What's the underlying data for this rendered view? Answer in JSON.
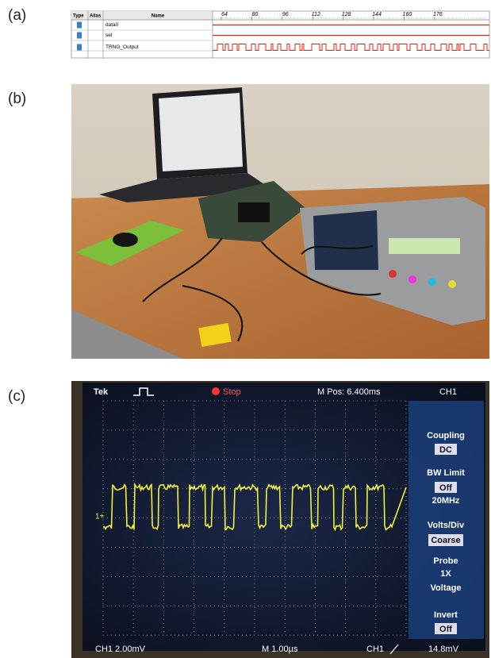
{
  "panels": {
    "a": {
      "label": "(a)",
      "table": {
        "headers": [
          "Type",
          "Alias",
          "Name"
        ],
        "timeline": [
          64,
          80,
          96,
          112,
          128,
          144,
          160,
          176
        ],
        "rows": [
          "data0",
          "sel",
          "TRNG_Output"
        ]
      }
    },
    "b": {
      "label": "(b)"
    },
    "c": {
      "label": "(c)",
      "scope": {
        "brand": "Tek",
        "state": "Stop",
        "position": "M Pos: 6.400ms",
        "channel": "CH1",
        "menu": {
          "coupling": "Coupling",
          "coupling_value": "DC",
          "bw": "BW Limit",
          "bw_value": "Off",
          "bw_note": "20MHz",
          "volts": "Volts/Div",
          "volts_value": "Coarse",
          "probe": "Probe",
          "probe_value": "1X",
          "probe_note": "Voltage",
          "invert": "Invert",
          "invert_value": "Off"
        },
        "marker": "1+",
        "footer": [
          "CH1 2.00mV",
          "M 1.00µs",
          "CH1",
          "14.8mV"
        ]
      }
    }
  }
}
